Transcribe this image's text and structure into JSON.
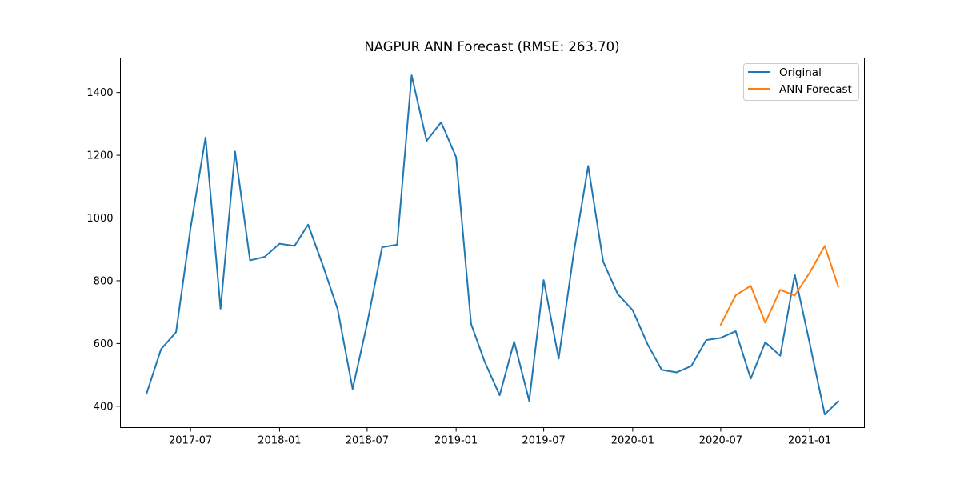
{
  "chart_data": {
    "type": "line",
    "title": "NAGPUR ANN Forecast (RMSE: 263.70)",
    "xlabel": "",
    "ylabel": "",
    "xlim": [
      "2017-02-06",
      "2021-04-24"
    ],
    "ylim": [
      332,
      1510
    ],
    "x_ticks": [
      {
        "date": "2017-07-01",
        "label": "2017-07"
      },
      {
        "date": "2018-01-01",
        "label": "2018-01"
      },
      {
        "date": "2018-07-01",
        "label": "2018-07"
      },
      {
        "date": "2019-01-01",
        "label": "2019-01"
      },
      {
        "date": "2019-07-01",
        "label": "2019-07"
      },
      {
        "date": "2020-01-01",
        "label": "2020-01"
      },
      {
        "date": "2020-07-01",
        "label": "2020-07"
      },
      {
        "date": "2021-01-01",
        "label": "2021-01"
      }
    ],
    "y_ticks": [
      400,
      600,
      800,
      1000,
      1200,
      1400
    ],
    "grid": false,
    "legend_position": "top-right",
    "series": [
      {
        "name": "Original",
        "color": "#1f77b4",
        "x": [
          "2017-04-01",
          "2017-05-01",
          "2017-06-01",
          "2017-07-01",
          "2017-08-01",
          "2017-09-01",
          "2017-10-01",
          "2017-11-01",
          "2017-12-01",
          "2018-01-01",
          "2018-02-01",
          "2018-03-01",
          "2018-04-01",
          "2018-05-01",
          "2018-06-01",
          "2018-07-01",
          "2018-08-01",
          "2018-09-01",
          "2018-10-01",
          "2018-11-01",
          "2018-12-01",
          "2019-01-01",
          "2019-02-01",
          "2019-03-01",
          "2019-04-01",
          "2019-05-01",
          "2019-06-01",
          "2019-07-01",
          "2019-08-01",
          "2019-09-01",
          "2019-10-01",
          "2019-11-01",
          "2019-12-01",
          "2020-01-01",
          "2020-02-01",
          "2020-03-01",
          "2020-04-01",
          "2020-05-01",
          "2020-06-01",
          "2020-07-01",
          "2020-08-01",
          "2020-09-01",
          "2020-10-01",
          "2020-11-01",
          "2020-12-01",
          "2021-01-01",
          "2021-02-01",
          "2021-03-01"
        ],
        "values": [
          440,
          582,
          636,
          968,
          1257,
          711,
          1212,
          865,
          876,
          918,
          911,
          979,
          847,
          710,
          455,
          663,
          907,
          915,
          1455,
          1246,
          1305,
          1194,
          662,
          542,
          435,
          606,
          417,
          802,
          552,
          887,
          1166,
          861,
          758,
          706,
          597,
          516,
          508,
          528,
          611,
          618,
          639,
          488,
          604,
          561,
          820,
          600,
          374,
          416
        ]
      },
      {
        "name": "ANN Forecast",
        "color": "#ff7f0e",
        "x": [
          "2020-07-01",
          "2020-08-01",
          "2020-09-01",
          "2020-10-01",
          "2020-11-01",
          "2020-12-01",
          "2021-01-01",
          "2021-02-01",
          "2021-03-01"
        ],
        "values": [
          660,
          754,
          784,
          666,
          771,
          753,
          826,
          911,
          781
        ]
      }
    ]
  }
}
